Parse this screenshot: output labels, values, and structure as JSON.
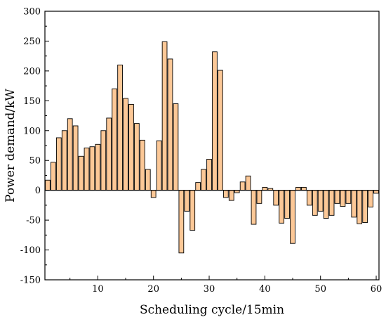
{
  "chart_data": {
    "type": "bar",
    "title": "",
    "xlabel": "Scheduling cycle/15min",
    "ylabel": "Power demand/kW",
    "xlim": [
      0.5,
      60.5
    ],
    "ylim": [
      -150,
      300
    ],
    "x_ticks": [
      10,
      20,
      30,
      40,
      50,
      60
    ],
    "y_ticks": [
      -150,
      -100,
      -50,
      0,
      50,
      100,
      150,
      200,
      250,
      300
    ],
    "bar_color": "#fcc897",
    "edge_color": "#000000",
    "grid": false,
    "legend": "none",
    "x": [
      1,
      2,
      3,
      4,
      5,
      6,
      7,
      8,
      9,
      10,
      11,
      12,
      13,
      14,
      15,
      16,
      17,
      18,
      19,
      20,
      21,
      22,
      23,
      24,
      25,
      26,
      27,
      28,
      29,
      30,
      31,
      32,
      33,
      34,
      35,
      36,
      37,
      38,
      39,
      40,
      41,
      42,
      43,
      44,
      45,
      46,
      47,
      48,
      49,
      50,
      51,
      52,
      53,
      54,
      55,
      56,
      57,
      58,
      59,
      60
    ],
    "values": [
      17,
      47,
      88,
      100,
      120,
      108,
      57,
      71,
      73,
      77,
      100,
      121,
      170,
      210,
      154,
      144,
      112,
      84,
      35,
      -12,
      83,
      249,
      220,
      145,
      -105,
      -35,
      -67,
      13,
      35,
      52,
      232,
      201,
      -12,
      -17,
      -4,
      14,
      24,
      -57,
      -22,
      5,
      3,
      -25,
      -55,
      -47,
      -89,
      5,
      5,
      -25,
      -42,
      -35,
      -47,
      -42,
      -22,
      -27,
      -22,
      -45,
      -56,
      -54,
      -28,
      -5
    ]
  }
}
